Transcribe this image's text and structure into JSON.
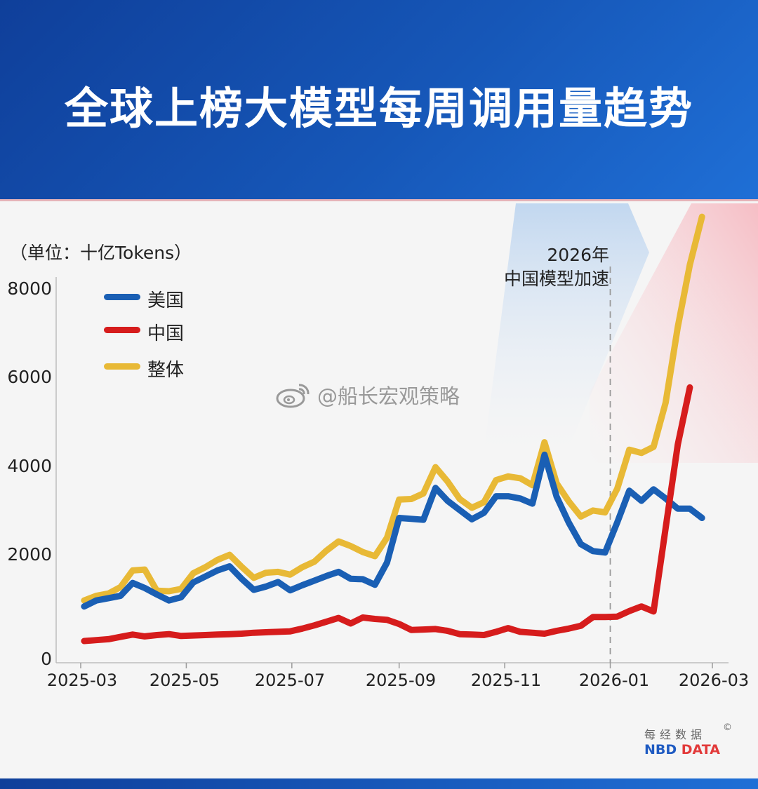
{
  "header": {
    "title": "全球上榜大模型每周调用量趋势"
  },
  "chart_data": {
    "type": "line",
    "unit_label": "（单位：十亿Tokens）",
    "y_ticks": [
      "0",
      "2000",
      "4000",
      "6000",
      "8000"
    ],
    "x_ticks": [
      "2025-03",
      "2025-05",
      "2025-07",
      "2025-09",
      "2025-11",
      "2026-01",
      "2026-03"
    ],
    "ylim": [
      0,
      8000
    ],
    "xlim": [
      "2025-03-01",
      "2026-03-01"
    ],
    "grid": false,
    "legend_position": "top-left",
    "x": [
      "2025-03-03",
      "2025-03-10",
      "2025-03-17",
      "2025-03-24",
      "2025-03-31",
      "2025-04-07",
      "2025-04-14",
      "2025-04-21",
      "2025-04-28",
      "2025-05-05",
      "2025-05-12",
      "2025-05-19",
      "2025-05-26",
      "2025-06-02",
      "2025-06-09",
      "2025-06-16",
      "2025-06-23",
      "2025-06-30",
      "2025-07-07",
      "2025-07-14",
      "2025-07-21",
      "2025-07-28",
      "2025-08-04",
      "2025-08-11",
      "2025-08-18",
      "2025-08-25",
      "2025-09-01",
      "2025-09-08",
      "2025-09-15",
      "2025-09-22",
      "2025-09-29",
      "2025-10-06",
      "2025-10-13",
      "2025-10-20",
      "2025-10-27",
      "2025-11-03",
      "2025-11-10",
      "2025-11-17",
      "2025-11-24",
      "2025-12-01",
      "2025-12-08",
      "2025-12-15",
      "2025-12-22",
      "2025-12-29",
      "2026-01-05",
      "2026-01-12",
      "2026-01-19",
      "2026-01-26",
      "2026-02-02",
      "2026-02-09",
      "2026-02-16",
      "2026-02-23"
    ],
    "series": [
      {
        "name": "美国",
        "color": "#1a5fb4",
        "values": [
          1130,
          1260,
          1310,
          1360,
          1640,
          1530,
          1390,
          1260,
          1330,
          1650,
          1780,
          1910,
          2000,
          1730,
          1490,
          1560,
          1660,
          1480,
          1590,
          1690,
          1790,
          1880,
          1730,
          1720,
          1600,
          2080,
          3050,
          3030,
          3010,
          3700,
          3420,
          3220,
          3020,
          3160,
          3520,
          3520,
          3470,
          3360,
          4420,
          3510,
          2950,
          2480,
          2330,
          2300,
          2950,
          3640,
          3420,
          3670,
          3470,
          3250,
          3250,
          3050
        ]
      },
      {
        "name": "中国",
        "color": "#d61c1c",
        "values": [
          380,
          400,
          420,
          470,
          520,
          480,
          510,
          530,
          490,
          500,
          510,
          520,
          530,
          540,
          560,
          570,
          580,
          590,
          650,
          720,
          800,
          880,
          760,
          890,
          860,
          840,
          750,
          620,
          630,
          640,
          600,
          530,
          520,
          510,
          580,
          660,
          580,
          560,
          540,
          600,
          650,
          710,
          900,
          900,
          910,
          1030,
          1130,
          1020,
          2830,
          4640,
          5880,
          null
        ]
      },
      {
        "name": "整体",
        "color": "#e8b936",
        "values": [
          1260,
          1360,
          1410,
          1550,
          1910,
          1930,
          1470,
          1460,
          1510,
          1850,
          1980,
          2140,
          2250,
          1990,
          1750,
          1860,
          1880,
          1820,
          1980,
          2100,
          2340,
          2540,
          2440,
          2310,
          2220,
          2620,
          3450,
          3460,
          3580,
          4150,
          3840,
          3460,
          3270,
          3390,
          3870,
          3950,
          3910,
          3760,
          4690,
          3800,
          3410,
          3080,
          3210,
          3170,
          3680,
          4530,
          4460,
          4590,
          5550,
          7190,
          8540,
          9580
        ]
      }
    ],
    "annotation": {
      "date": "2026-01-01",
      "line1": "2026年",
      "line2": "中国模型加速"
    }
  },
  "watermark": {
    "text": "@船长宏观策略",
    "icon": "weibo-icon"
  },
  "credit": {
    "cn": "每经数据",
    "nbd": "NBD",
    "data": "DATA",
    "copyright": "©"
  }
}
